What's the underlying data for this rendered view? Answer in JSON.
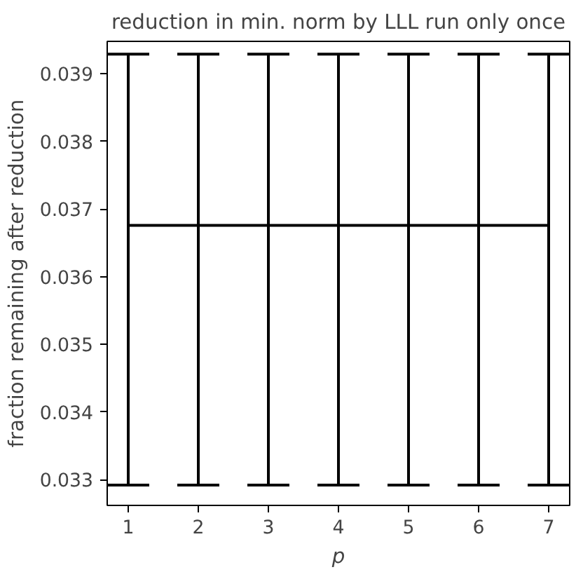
{
  "chart_data": {
    "type": "line",
    "title": "reduction in min. norm by LLL run only once",
    "xlabel": "p",
    "ylabel": "fraction remaining after reduction",
    "x": [
      1,
      2,
      3,
      4,
      5,
      6,
      7
    ],
    "series": [
      {
        "color": "#000000",
        "values": [
          0.03676,
          0.03676,
          0.03676,
          0.03676,
          0.03676,
          0.03676,
          0.03676
        ],
        "errors": [
          [
            0.03292,
            0.03929
          ],
          [
            0.03292,
            0.03929
          ],
          [
            0.03292,
            0.03929
          ],
          [
            0.03292,
            0.03929
          ],
          [
            0.03292,
            0.03929
          ],
          [
            0.03292,
            0.03929
          ],
          [
            0.03292,
            0.03929
          ]
        ]
      }
    ],
    "xlim": [
      0.7,
      7.3
    ],
    "ylim": [
      0.03262,
      0.03948
    ],
    "xticks": [
      1,
      2,
      3,
      4,
      5,
      6,
      7
    ],
    "yticks": [
      0.033,
      0.034,
      0.035,
      0.036,
      0.037,
      0.038,
      0.039
    ],
    "grid": false,
    "marker": "none",
    "line_style": "solid"
  }
}
